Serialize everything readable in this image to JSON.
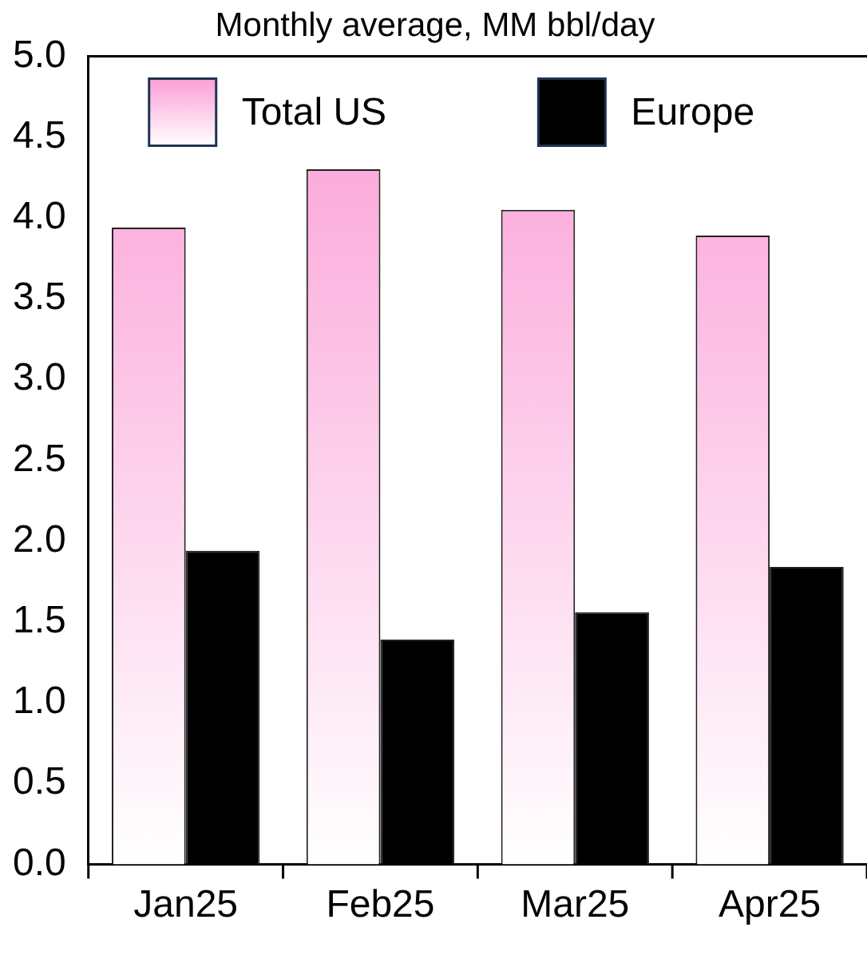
{
  "chart_data": {
    "type": "bar",
    "title": "Monthly average, MM bbl/day",
    "categories": [
      "Jan25",
      "Feb25",
      "Mar25",
      "Apr25"
    ],
    "series": [
      {
        "name": "Total US",
        "color": "#fb9ed6",
        "values": [
          3.94,
          4.3,
          4.05,
          3.89
        ]
      },
      {
        "name": "Europe",
        "color": "#000000",
        "values": [
          1.94,
          1.39,
          1.56,
          1.84
        ]
      }
    ],
    "ylim": [
      0,
      5
    ],
    "yticks": [
      {
        "value": 0,
        "label": "0.0"
      },
      {
        "value": 0.5,
        "label": "0.5"
      },
      {
        "value": 1,
        "label": "1.0"
      },
      {
        "value": 1.5,
        "label": "1.5"
      },
      {
        "value": 2,
        "label": "2.0"
      },
      {
        "value": 2.5,
        "label": "2.5"
      },
      {
        "value": 3,
        "label": "3.0"
      },
      {
        "value": 3.5,
        "label": "3.5"
      },
      {
        "value": 4,
        "label": "4.0"
      },
      {
        "value": 4.5,
        "label": "4.5"
      },
      {
        "value": 5,
        "label": "5.0"
      }
    ],
    "grid": false,
    "legend": "top"
  }
}
